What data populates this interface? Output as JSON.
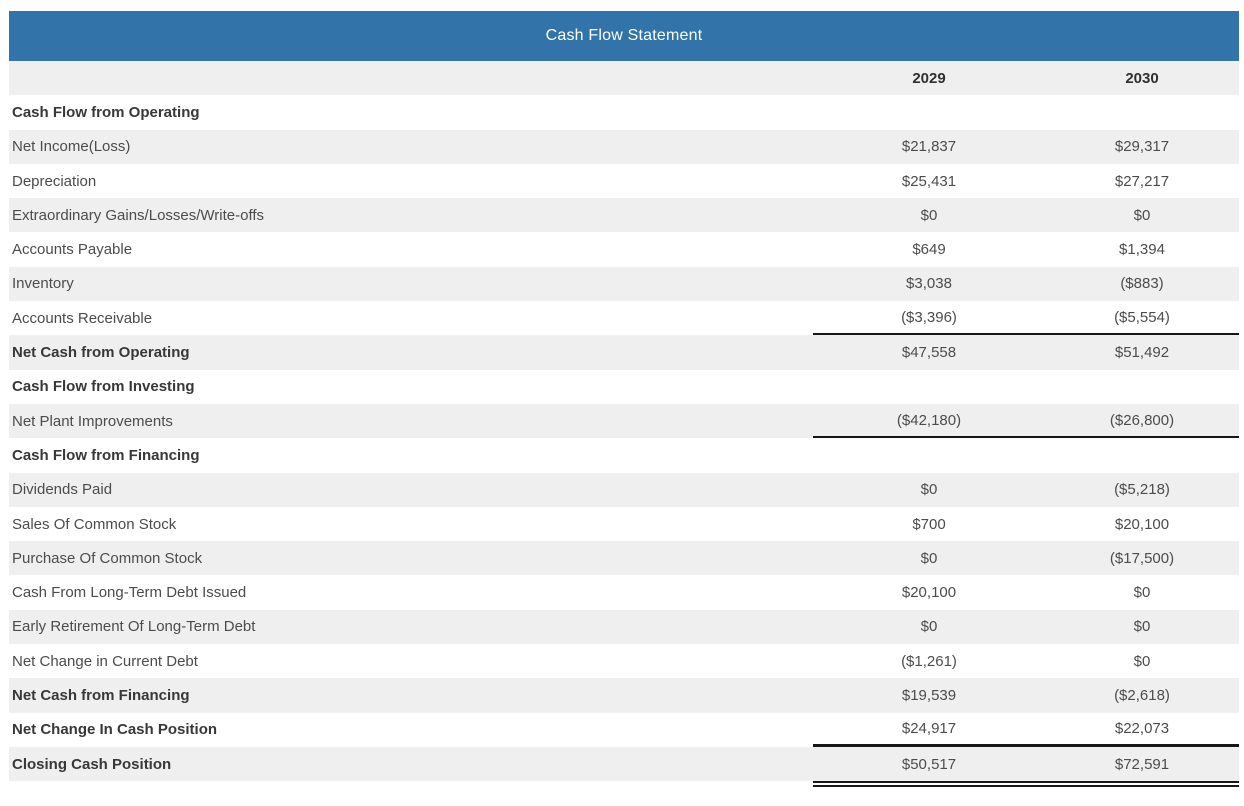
{
  "title": "Cash Flow Statement",
  "columns": [
    "2029",
    "2030"
  ],
  "colors": {
    "header_bg": "#3274a9",
    "header_text": "#ffffff",
    "stripe": "#efefef",
    "rule": "#161616",
    "body_text": "#4c4c4e"
  },
  "rows": [
    {
      "label": "Cash Flow from Operating",
      "c1": "",
      "c2": ""
    },
    {
      "label": "Net Income(Loss)",
      "c1": "$21,837",
      "c2": "$29,317"
    },
    {
      "label": "Depreciation",
      "c1": "$25,431",
      "c2": "$27,217"
    },
    {
      "label": "Extraordinary Gains/Losses/Write-offs",
      "c1": "$0",
      "c2": "$0"
    },
    {
      "label": "Accounts Payable",
      "c1": "$649",
      "c2": "$1,394"
    },
    {
      "label": "Inventory",
      "c1": "$3,038",
      "c2": "($883)"
    },
    {
      "label": "Accounts Receivable",
      "c1": "($3,396)",
      "c2": "($5,554)"
    },
    {
      "label": "Net Cash from Operating",
      "c1": "$47,558",
      "c2": "$51,492"
    },
    {
      "label": "Cash Flow from Investing",
      "c1": "",
      "c2": ""
    },
    {
      "label": "Net Plant Improvements",
      "c1": "($42,180)",
      "c2": "($26,800)"
    },
    {
      "label": "Cash Flow from Financing",
      "c1": "",
      "c2": ""
    },
    {
      "label": "Dividends Paid",
      "c1": "$0",
      "c2": "($5,218)"
    },
    {
      "label": "Sales Of Common Stock",
      "c1": "$700",
      "c2": "$20,100"
    },
    {
      "label": "Purchase Of Common Stock",
      "c1": "$0",
      "c2": "($17,500)"
    },
    {
      "label": "Cash From Long-Term Debt Issued",
      "c1": "$20,100",
      "c2": "$0"
    },
    {
      "label": "Early Retirement Of Long-Term Debt",
      "c1": "$0",
      "c2": "$0"
    },
    {
      "label": "Net Change in Current Debt",
      "c1": "($1,261)",
      "c2": "$0"
    },
    {
      "label": "Net Cash from Financing",
      "c1": "$19,539",
      "c2": "($2,618)"
    },
    {
      "label": "Net Change In Cash Position",
      "c1": "$24,917",
      "c2": "$22,073"
    },
    {
      "label": "Closing Cash Position",
      "c1": "$50,517",
      "c2": "$72,591"
    }
  ]
}
